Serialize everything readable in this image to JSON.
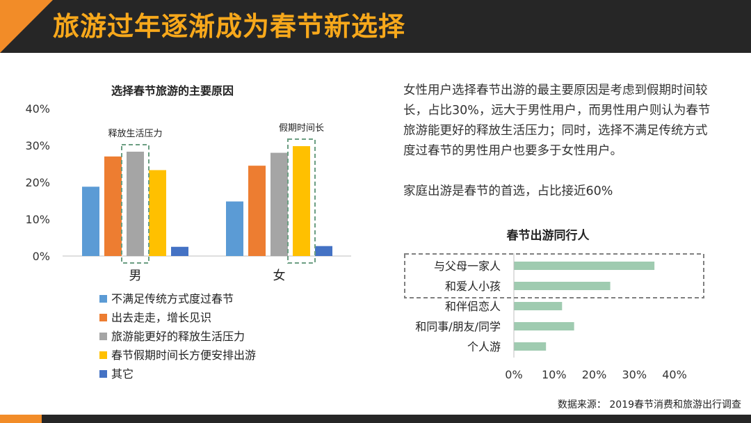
{
  "title": "旅游过年逐渐成为春节新选择",
  "chart_data": [
    {
      "type": "bar",
      "title": "选择春节旅游的主要原因",
      "categories": [
        "男",
        "女"
      ],
      "ylim": [
        0,
        40
      ],
      "yticks": [
        "0%",
        "10%",
        "20%",
        "30%",
        "40%"
      ],
      "series": [
        {
          "name": "不满足传统方式度过春节",
          "color": "#5b9bd5",
          "values": [
            18.8,
            14.8
          ]
        },
        {
          "name": "出去走走，增长见识",
          "color": "#ed7d31",
          "values": [
            27,
            24.5
          ]
        },
        {
          "name": "旅游能更好的释放生活压力",
          "color": "#a5a5a5",
          "values": [
            28.3,
            28
          ]
        },
        {
          "name": "春节假期时间长方便安排出游",
          "color": "#ffc000",
          "values": [
            23.3,
            29.8
          ]
        },
        {
          "name": "其它",
          "color": "#4472c4",
          "values": [
            2.5,
            2.7
          ]
        }
      ],
      "annotations": [
        {
          "text": "释放生活压力",
          "category_index": 0,
          "series_index": 2
        },
        {
          "text": "假期时间长",
          "category_index": 1,
          "series_index": 3
        }
      ]
    },
    {
      "type": "bar",
      "orientation": "horizontal",
      "title": "春节出游同行人",
      "categories": [
        "与父母一家人",
        "和爱人小孩",
        "和伴侣恋人",
        "和同事/朋友/同学",
        "个人游"
      ],
      "values": [
        35,
        24,
        12,
        15,
        8
      ],
      "color": "#9fcbb0",
      "xlim": [
        0,
        40
      ],
      "xticks": [
        "0%",
        "10%",
        "20%",
        "30%",
        "40%"
      ],
      "highlight": [
        0,
        1
      ]
    }
  ],
  "description": {
    "paragraph1": "女性用户选择春节出游的最主要原因是考虑到假期时间较长，占比30%，远大于男性用户，而男性用户则认为春节旅游能更好的释放生活压力；同时，选择不满足传统方式度过春节的男性用户也要多于女性用户。",
    "paragraph2": "家庭出游是春节的首选，占比接近60%"
  },
  "source": "数据来源： 2019春节消费和旅游出行调查"
}
